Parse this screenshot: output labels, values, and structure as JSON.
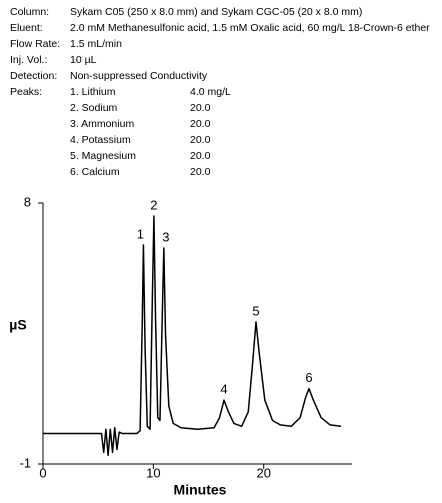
{
  "method": {
    "rows": [
      [
        "Column:",
        "Sykam C05 (250 x 8.0 mm) and Sykam CGC-05 (20 x 8.0 mm)"
      ],
      [
        "Eluent:",
        "2.0 mM Methanesulfonic acid, 1.5 mM Oxalic acid, 60 mg/L 18-Crown-6 ether"
      ],
      [
        "Flow Rate:",
        "1.5 mL/min"
      ],
      [
        "Inj. Vol.:",
        "10 µL"
      ],
      [
        "Detection:",
        "Non-suppressed Conductivity"
      ]
    ],
    "peaks_label": "Peaks:",
    "peaks": [
      [
        "1. Lithium",
        "4.0 mg/L"
      ],
      [
        "2. Sodium",
        "20.0"
      ],
      [
        "3. Ammonium",
        "20.0"
      ],
      [
        "4. Potassium",
        "20.0"
      ],
      [
        "5. Magnesium",
        "20.0"
      ],
      [
        "6. Calcium",
        "20.0"
      ]
    ]
  },
  "chart_data": {
    "type": "line",
    "x_label": "Minutes",
    "y_label": "µS",
    "color": "#000000",
    "xlim": [
      0,
      28
    ],
    "ylim": [
      -1,
      8
    ],
    "xticks": [
      0,
      10,
      20
    ],
    "yticks": [
      8,
      -1
    ],
    "x": [
      0,
      2,
      4,
      5.3,
      5.5,
      5.7,
      5.9,
      6.1,
      6.3,
      6.5,
      6.7,
      6.9,
      7.2,
      8.5,
      8.8,
      9.0,
      9.1,
      9.25,
      9.45,
      9.7,
      9.9,
      10.05,
      10.2,
      10.4,
      10.6,
      10.8,
      10.95,
      11.1,
      11.4,
      11.8,
      12.5,
      14,
      15.5,
      16.0,
      16.4,
      16.8,
      17.3,
      18,
      18.6,
      19.0,
      19.3,
      19.6,
      20.1,
      20.8,
      21.5,
      22.5,
      23.3,
      23.8,
      24.1,
      24.5,
      25.2,
      26,
      27
    ],
    "values": [
      0.05,
      0.05,
      0.05,
      0.05,
      -0.6,
      0.2,
      -0.7,
      0.2,
      -0.6,
      0.25,
      -0.5,
      0.1,
      0.05,
      0.05,
      0.15,
      4.0,
      6.55,
      3.0,
      0.3,
      0.2,
      4.5,
      7.55,
      4.0,
      0.6,
      0.5,
      4.0,
      6.45,
      3.5,
      1.0,
      0.4,
      0.25,
      0.2,
      0.25,
      0.6,
      1.2,
      0.8,
      0.4,
      0.3,
      0.8,
      2.5,
      3.9,
      2.8,
      1.2,
      0.5,
      0.35,
      0.3,
      0.6,
      1.3,
      1.6,
      1.2,
      0.6,
      0.35,
      0.3
    ],
    "annotations": [
      {
        "text": "1",
        "x": 9.1,
        "y": 6.55
      },
      {
        "text": "2",
        "x": 10.05,
        "y": 7.55
      },
      {
        "text": "3",
        "x": 10.95,
        "y": 6.45
      },
      {
        "text": "4",
        "x": 16.4,
        "y": 1.2
      },
      {
        "text": "5",
        "x": 19.3,
        "y": 3.9
      },
      {
        "text": "6",
        "x": 24.1,
        "y": 1.6
      }
    ]
  }
}
